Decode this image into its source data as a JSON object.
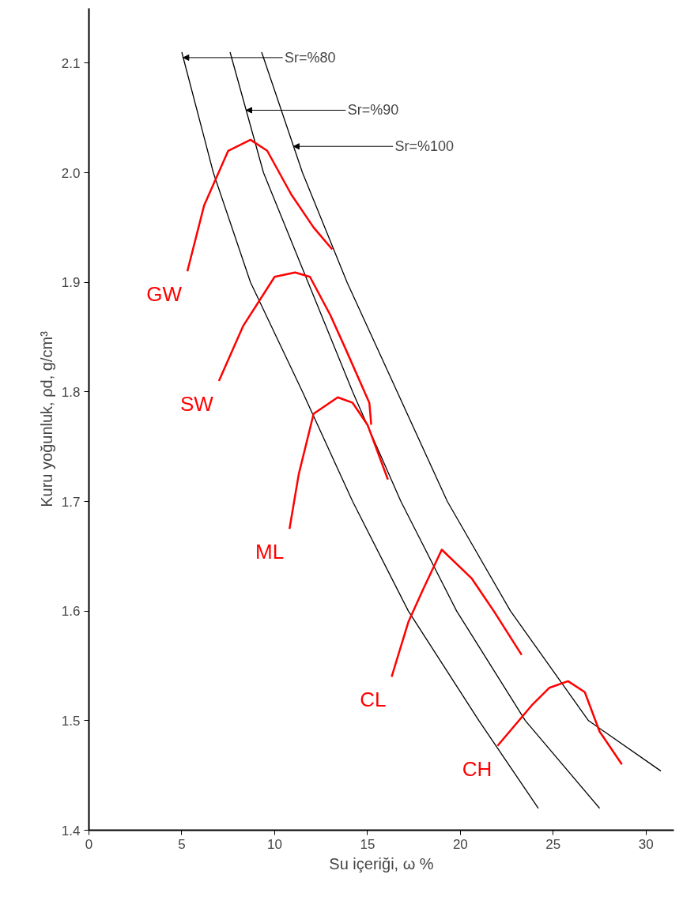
{
  "chart_data": {
    "type": "line",
    "xlabel": "Su içeriği, ω %",
    "ylabel": "Kuru yoğunluk, ρd, g/cm³",
    "xlim": [
      0,
      31.5
    ],
    "ylim": [
      1.4,
      2.15
    ],
    "xticks": [
      0,
      5,
      10,
      15,
      20,
      25,
      30
    ],
    "yticks": [
      1.4,
      1.5,
      1.6,
      1.7,
      1.8,
      1.9,
      {
        "value": 2.0,
        "label": "2.0"
      },
      2.1
    ],
    "grid": false,
    "legend": false,
    "marker": "none",
    "line_style": "solid",
    "series": [
      {
        "color": "#000000",
        "x": [
          5.0,
          6.7,
          8.7,
          11.5,
          14.2,
          17.2,
          21.0,
          24.2
        ],
        "values": [
          2.11,
          2.0,
          1.9,
          1.8,
          1.7,
          1.6,
          1.5,
          1.42
        ]
      },
      {
        "color": "#000000",
        "x": [
          7.6,
          9.4,
          11.8,
          14.2,
          16.8,
          19.8,
          23.5,
          27.5
        ],
        "values": [
          2.11,
          2.0,
          1.9,
          1.8,
          1.7,
          1.6,
          1.5,
          1.42
        ]
      },
      {
        "color": "#000000",
        "x": [
          9.3,
          11.5,
          13.9,
          16.6,
          19.3,
          22.7,
          26.9,
          30.8
        ],
        "values": [
          2.11,
          2.0,
          1.9,
          1.8,
          1.7,
          1.6,
          1.5,
          1.454
        ]
      },
      {
        "name": "GW",
        "color": "#ff0000",
        "x": [
          5.3,
          6.2,
          7.5,
          8.7,
          9.6,
          10.9,
          12.1,
          13.1
        ],
        "values": [
          1.91,
          1.97,
          2.02,
          2.03,
          2.02,
          1.98,
          1.95,
          1.93
        ]
      },
      {
        "name": "SW",
        "color": "#ff0000",
        "x": [
          7.0,
          8.3,
          10.0,
          11.1,
          11.9,
          13.0,
          13.8,
          15.1,
          15.2
        ],
        "values": [
          1.81,
          1.86,
          1.905,
          1.909,
          1.905,
          1.87,
          1.84,
          1.79,
          1.77
        ]
      },
      {
        "name": "ML",
        "color": "#ff0000",
        "x": [
          10.8,
          11.3,
          12.1,
          13.4,
          14.2,
          15.0,
          16.1
        ],
        "values": [
          1.675,
          1.725,
          1.78,
          1.795,
          1.79,
          1.77,
          1.72
        ]
      },
      {
        "name": "CL",
        "color": "#ff0000",
        "x": [
          16.3,
          17.2,
          18.0,
          19.0,
          20.6,
          21.8,
          23.3
        ],
        "values": [
          1.54,
          1.59,
          1.62,
          1.656,
          1.63,
          1.6,
          1.56
        ]
      },
      {
        "name": "CH",
        "color": "#ff0000",
        "x": [
          22.0,
          23.9,
          24.8,
          25.8,
          26.7,
          27.5,
          28.7
        ],
        "values": [
          1.477,
          1.515,
          1.53,
          1.536,
          1.526,
          1.49,
          1.46
        ]
      }
    ],
    "annotations": [
      {
        "text": "Sr=%80",
        "x": 5.08,
        "y": 2.105
      },
      {
        "text": "Sr=%90",
        "x": 8.47,
        "y": 2.057
      },
      {
        "text": "Sr=%100",
        "x": 11.02,
        "y": 2.024
      }
    ]
  }
}
